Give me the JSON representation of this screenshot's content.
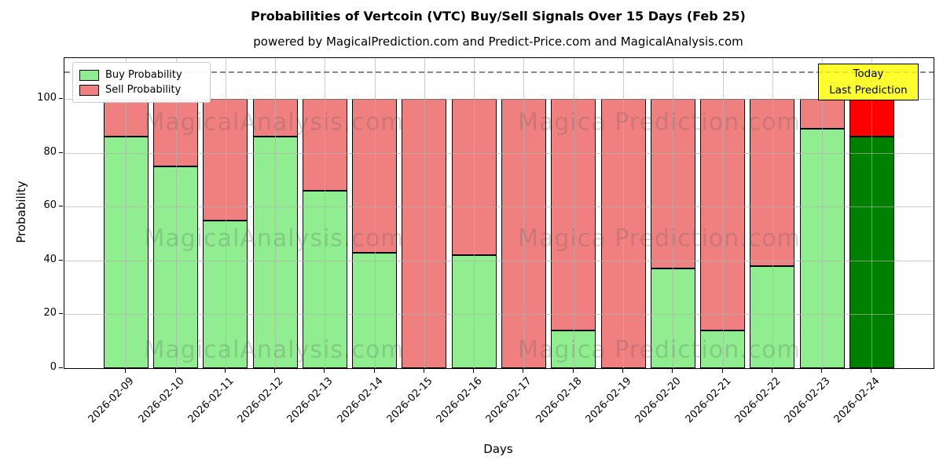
{
  "annotation_box": {
    "line1": "Today",
    "line2": "Last Prediction",
    "bg_color": "#ffff00"
  },
  "watermarks": {
    "left_text": "MagicalAnalysis.com",
    "right_text": "Magica Prediction.com"
  },
  "colors": {
    "buy": "#90ee90",
    "sell": "#f08080",
    "today_buy": "#008000",
    "today_sell": "#ff0000",
    "bar_edge": "#000000",
    "grid": "#b0b0b0",
    "dashed_line": "#8a8a8a",
    "annotation_bg": "#ffff00",
    "legend_border": "#cccccc"
  },
  "chart_data": {
    "type": "bar",
    "stacked": true,
    "title": "Probabilities of Vertcoin (VTC) Buy/Sell Signals Over 15 Days (Feb 25)",
    "subtitle": "powered by MagicalPrediction.com and Predict-Price.com and MagicalAnalysis.com",
    "xlabel": "Days",
    "ylabel": "Probability",
    "categories": [
      "2026-02-09",
      "2026-02-10",
      "2026-02-11",
      "2026-02-12",
      "2026-02-13",
      "2026-02-14",
      "2026-02-15",
      "2026-02-16",
      "2026-02-17",
      "2026-02-18",
      "2026-02-19",
      "2026-02-20",
      "2026-02-21",
      "2026-02-22",
      "2026-02-23",
      "2026-02-24"
    ],
    "series": [
      {
        "name": "Buy Probability",
        "color": "#90ee90",
        "values": [
          86,
          75,
          55,
          86,
          66,
          43,
          0,
          42,
          0,
          14,
          0,
          37,
          14,
          38,
          89,
          86
        ]
      },
      {
        "name": "Sell Probability",
        "color": "#f08080",
        "values": [
          14,
          25,
          45,
          14,
          34,
          57,
          100,
          58,
          100,
          86,
          100,
          63,
          86,
          62,
          11,
          14
        ]
      }
    ],
    "today_index": 15,
    "today_colors": {
      "buy": "#008000",
      "sell": "#ff0000"
    },
    "yticks": [
      0,
      20,
      40,
      60,
      80,
      100
    ],
    "ylim": [
      0,
      115.4
    ],
    "dashed_line_y": 110,
    "grid": true,
    "legend_position": "upper left"
  }
}
